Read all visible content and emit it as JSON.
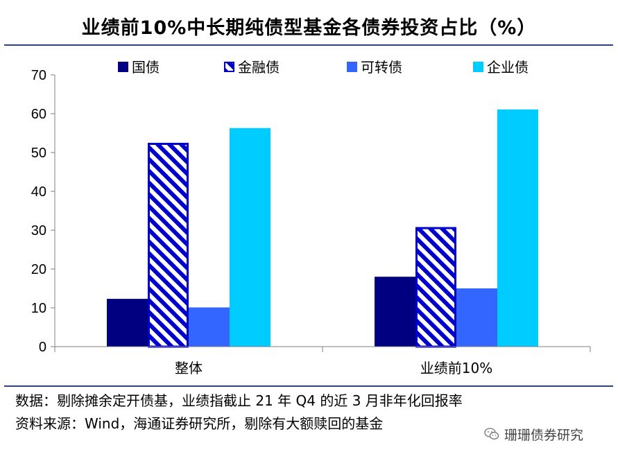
{
  "title": "业绩前10%中长期纯债型基金各债券投资占比（%）",
  "notes": {
    "line1": "数据：剔除摊余定开债基，业绩指截止 21 年 Q4 的近 3 月非年化回报率",
    "line2": "资料来源：Wind，海通证券研究所，剔除有大额赎回的基金"
  },
  "watermark": {
    "text": "珊珊债券研究",
    "icon": "wechat-icon"
  },
  "chart_data": {
    "type": "bar",
    "categories": [
      "整体",
      "业绩前10%"
    ],
    "series": [
      {
        "name": "国债",
        "values": [
          12.3,
          18.0
        ],
        "color": "#000080",
        "pattern": "solid"
      },
      {
        "name": "金融债",
        "values": [
          52.5,
          30.8
        ],
        "color": "#0000cc",
        "pattern": "diagonal-stripes"
      },
      {
        "name": "可转债",
        "values": [
          10.1,
          15.0
        ],
        "color": "#3366ff",
        "pattern": "solid"
      },
      {
        "name": "企业债",
        "values": [
          56.3,
          61.1
        ],
        "color": "#00ccff",
        "pattern": "solid"
      }
    ],
    "ylim": [
      0,
      70
    ],
    "yticks": [
      0,
      10,
      20,
      30,
      40,
      50,
      60,
      70
    ],
    "xlabel": "",
    "ylabel": "",
    "legend": "top",
    "grid": false
  }
}
